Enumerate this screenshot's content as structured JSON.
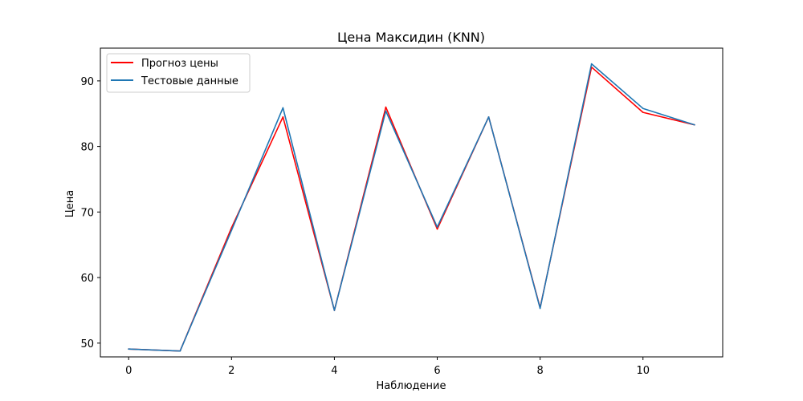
{
  "chart_data": {
    "type": "line",
    "title": "Цена Максидин  (KNN)",
    "xlabel": "Наблюдение",
    "ylabel": "Цена",
    "x": [
      0,
      1,
      2,
      3,
      4,
      5,
      6,
      7,
      8,
      9,
      10,
      11
    ],
    "xlim": [
      -0.55,
      11.55
    ],
    "ylim": [
      47.9,
      95.0
    ],
    "xticks": [
      0,
      2,
      4,
      6,
      8,
      10
    ],
    "yticks": [
      50,
      60,
      70,
      80,
      90
    ],
    "xtick_labels": [
      "0",
      "2",
      "4",
      "6",
      "8",
      "10"
    ],
    "ytick_labels": [
      "50",
      "60",
      "70",
      "80",
      "90"
    ],
    "grid": false,
    "legend_position": "top-left",
    "series": [
      {
        "name": "Прогноз цены",
        "color": "#ff0000",
        "values": [
          49.1,
          48.8,
          67.6,
          84.5,
          55.0,
          86.0,
          67.4,
          84.5,
          55.4,
          92.1,
          85.2,
          83.3
        ]
      },
      {
        "name": "Тестовые данные",
        "color": "#1f77b4",
        "values": [
          49.1,
          48.8,
          67.2,
          85.9,
          55.0,
          85.4,
          67.7,
          84.5,
          55.3,
          92.6,
          85.8,
          83.3
        ]
      }
    ]
  }
}
